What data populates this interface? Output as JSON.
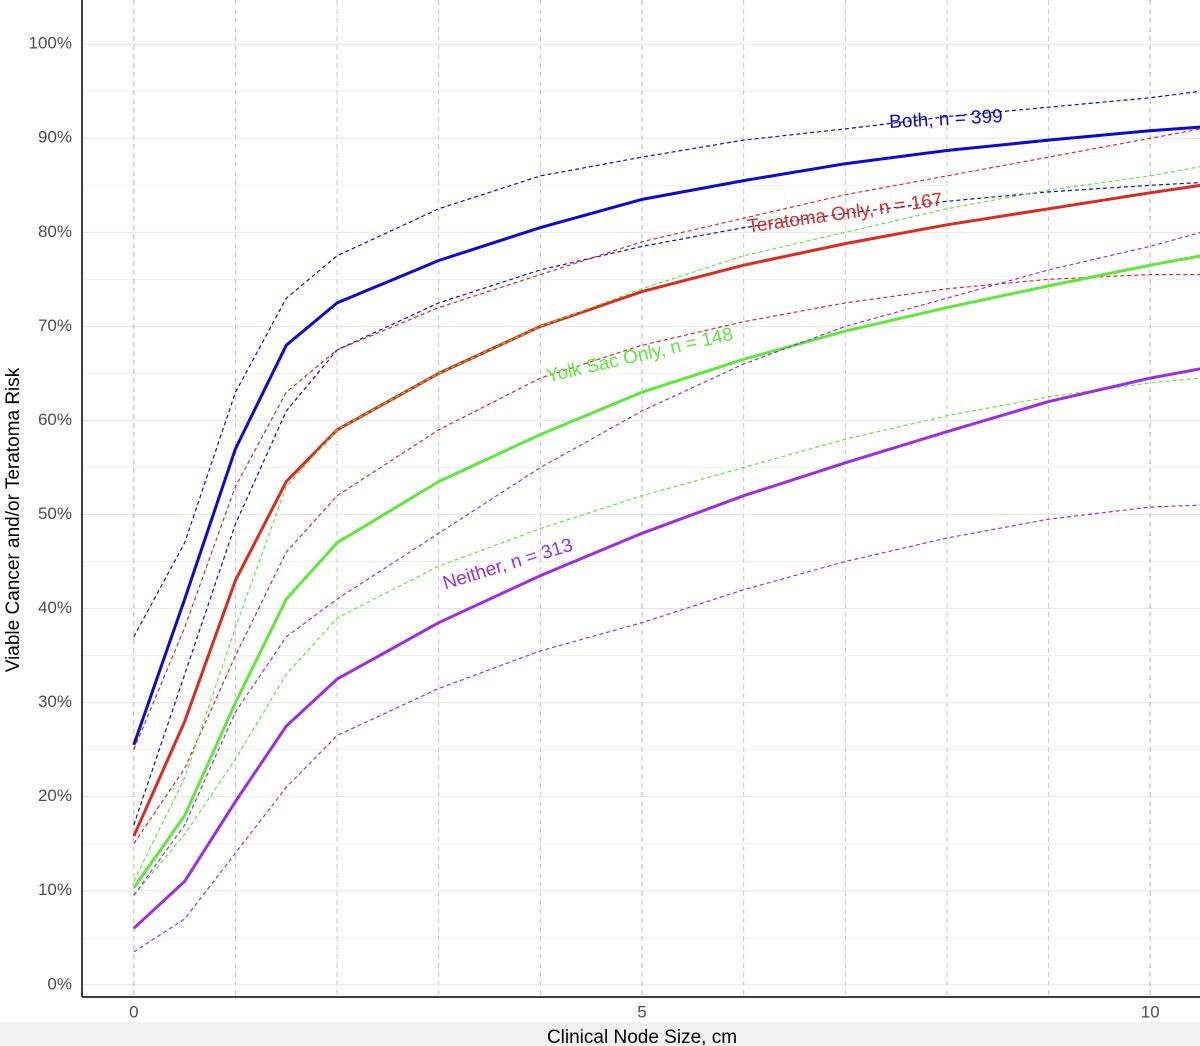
{
  "chart_data": {
    "type": "line",
    "x_label": "Clinical Node Size, cm",
    "y_label": "Viable Cancer and/or Teratoma Risk",
    "x": [
      0,
      0.5,
      1,
      1.5,
      2,
      3,
      4,
      5,
      6,
      7,
      8,
      9,
      10,
      10.5
    ],
    "series": [
      {
        "name": "Both, n = 399",
        "color": "#0a0ad2",
        "values": [
          25.5,
          41,
          57,
          68,
          72.5,
          77,
          80.5,
          83.5,
          85.5,
          87.3,
          88.7,
          89.8,
          90.8,
          91.2
        ],
        "lower": [
          17,
          33,
          49,
          61,
          67.5,
          72.5,
          76,
          78.5,
          80.5,
          82,
          83.3,
          84.3,
          85,
          85.3
        ],
        "upper": [
          37,
          47,
          63,
          73,
          77.5,
          82.5,
          86,
          88,
          89.8,
          91,
          92.3,
          93.3,
          94.3,
          95
        ]
      },
      {
        "name": "Teratoma Only, n = 167",
        "color": "#dc2a20",
        "values": [
          15.8,
          28,
          43,
          53.5,
          59,
          65,
          70,
          73.7,
          76.5,
          78.8,
          80.8,
          82.5,
          84.2,
          85
        ],
        "lower": [
          15,
          23,
          35,
          46,
          52,
          59,
          64.5,
          68,
          70.5,
          72.5,
          74,
          75,
          75.5,
          75.5
        ],
        "upper": [
          25,
          38,
          53,
          63,
          67.5,
          72,
          75.5,
          79,
          81.5,
          84,
          86,
          88,
          90,
          91
        ]
      },
      {
        "name": "Yolk Sac Only, n = 148",
        "color": "#5de83a",
        "values": [
          10.3,
          18,
          30,
          41,
          47,
          53.5,
          58.5,
          63,
          66.5,
          69.5,
          72,
          74.3,
          76.5,
          77.5
        ],
        "lower": [
          9.5,
          16,
          24,
          33,
          39,
          44.5,
          48.5,
          52,
          55,
          58,
          60.5,
          62.5,
          64,
          64.5
        ],
        "upper": [
          11,
          22,
          38,
          53,
          59,
          65,
          70,
          74,
          77.5,
          80,
          82.5,
          84.5,
          86,
          87
        ]
      },
      {
        "name": "Neither, n = 313",
        "color": "#9a2ee0",
        "values": [
          6,
          11,
          19.5,
          27.5,
          32.5,
          38.5,
          43.5,
          48,
          52,
          55.5,
          58.8,
          62,
          64.5,
          65.5
        ],
        "lower": [
          3.5,
          7,
          14,
          21,
          26.5,
          31.5,
          35.5,
          38.5,
          42,
          45,
          47.5,
          49.5,
          50.8,
          51
        ],
        "upper": [
          9.5,
          17,
          29,
          37,
          41,
          48,
          55,
          61,
          66,
          70,
          73,
          76,
          78.5,
          80
        ]
      }
    ],
    "xlim": [
      -0.51,
      10.49
    ],
    "ylim": [
      -1.3,
      104.7
    ],
    "xticks": [
      0,
      5,
      10
    ],
    "yticks": [
      {
        "value": 0,
        "label": "0%"
      },
      {
        "value": 10,
        "label": "10%"
      },
      {
        "value": 20,
        "label": "20%"
      },
      {
        "value": 30,
        "label": "30%"
      },
      {
        "value": 40,
        "label": "40%"
      },
      {
        "value": 50,
        "label": "50%"
      },
      {
        "value": 60,
        "label": "60%"
      },
      {
        "value": 70,
        "label": "70%"
      },
      {
        "value": 80,
        "label": "80%"
      },
      {
        "value": 90,
        "label": "90%"
      },
      {
        "value": 100,
        "label": "100%"
      }
    ],
    "x_minor_grid": [
      1,
      2,
      3,
      4,
      6,
      7,
      8,
      9
    ],
    "y_minor_grid": [
      5,
      15,
      25,
      35,
      45,
      55,
      65,
      75,
      85,
      95
    ],
    "grid": true
  }
}
